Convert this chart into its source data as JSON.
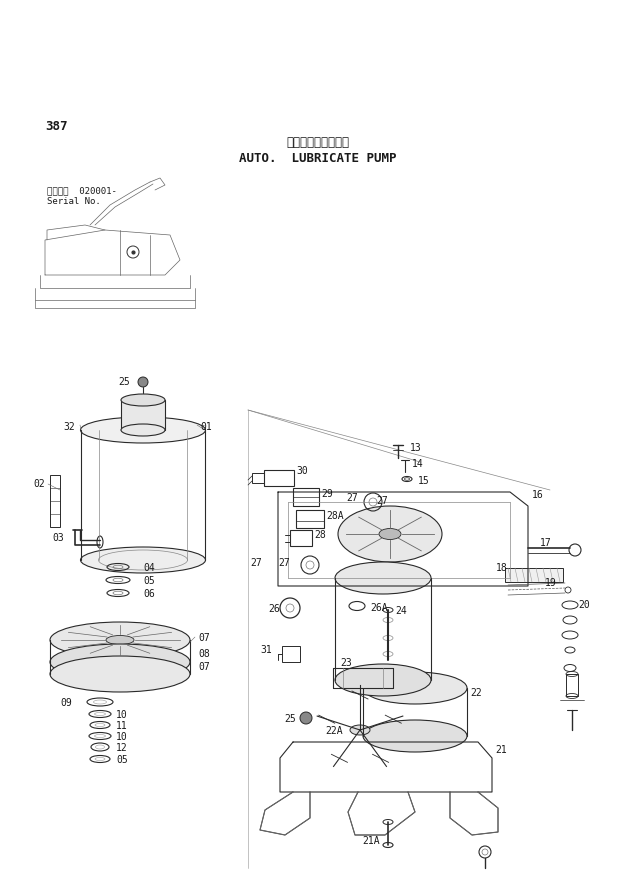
{
  "page_number": "387",
  "title_japanese": "自動給脂ボ゛ンプ゛",
  "title_english": "AUTO.  LUBRICATE PUMP",
  "serial_label_jp": "適用号機",
  "serial_number": "020001-",
  "serial_label_en": "Serial No.",
  "bg_color": "#ffffff",
  "text_color": "#1a1a1a",
  "line_color": "#2a2a2a",
  "fig_width": 6.2,
  "fig_height": 8.73,
  "dpi": 100
}
